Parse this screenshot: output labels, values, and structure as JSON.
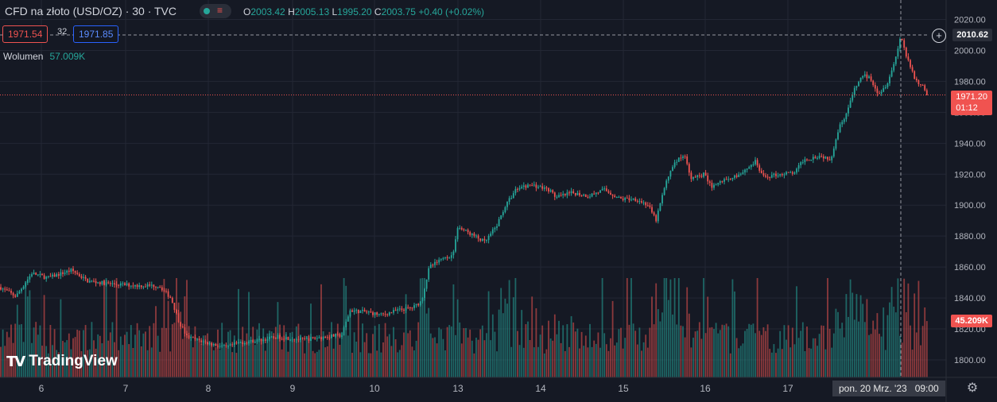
{
  "header": {
    "title": "CFD na złoto (USD/OZ) · 30 · TVC",
    "ohlc": [
      {
        "label": "O",
        "value": "2003.42"
      },
      {
        "label": "H",
        "value": "2005.13"
      },
      {
        "label": "L",
        "value": "1995.20"
      },
      {
        "label": "C",
        "value": "2003.75"
      },
      {
        "label": "",
        "value": "+0.40 (+0.02%)"
      }
    ]
  },
  "trade": {
    "bid": "1971.54",
    "spread": "32",
    "ask": "1971.85"
  },
  "volume_indicator": {
    "label": "Wolumen",
    "value": "57.009K"
  },
  "price_axis": {
    "labels": [
      "2020.00",
      "2000.00",
      "1980.00",
      "1960.00",
      "1940.00",
      "1920.00",
      "1900.00",
      "1880.00",
      "1860.00",
      "1840.00",
      "1820.00",
      "1800.00"
    ],
    "crosshair_price": "2010.62",
    "last_price": "1971.20",
    "countdown": "01:12",
    "volume_tag": "45.209K"
  },
  "time_axis": {
    "labels": [
      "6",
      "7",
      "8",
      "9",
      "10",
      "13",
      "14",
      "15",
      "16",
      "17"
    ],
    "crosshair_date": "pon. 20 Mrz. '23",
    "crosshair_time": "09:00"
  },
  "branding": {
    "logo_text": "TradingView",
    "logo_icon": "tradingview-logo"
  },
  "colors": {
    "up": "#26a69a",
    "down": "#ef5350",
    "background": "#151924",
    "grid": "#232734"
  },
  "chart_data": {
    "type": "candlestick",
    "symbol": "CFD na złoto (USD/OZ)",
    "interval": "30",
    "ylim": [
      1790,
      2028
    ],
    "close_path": [
      [
        0,
        1847
      ],
      [
        20,
        1841
      ],
      [
        40,
        1856
      ],
      [
        60,
        1853
      ],
      [
        90,
        1858
      ],
      [
        110,
        1851
      ],
      [
        140,
        1849
      ],
      [
        175,
        1848
      ],
      [
        200,
        1848
      ],
      [
        215,
        1840
      ],
      [
        225,
        1825
      ],
      [
        235,
        1815
      ],
      [
        260,
        1811
      ],
      [
        285,
        1808
      ],
      [
        300,
        1811
      ],
      [
        330,
        1813
      ],
      [
        350,
        1815
      ],
      [
        380,
        1813
      ],
      [
        410,
        1815
      ],
      [
        430,
        1816
      ],
      [
        440,
        1832
      ],
      [
        460,
        1831
      ],
      [
        480,
        1829
      ],
      [
        500,
        1832
      ],
      [
        520,
        1834
      ],
      [
        530,
        1838
      ],
      [
        540,
        1860
      ],
      [
        560,
        1866
      ],
      [
        570,
        1868
      ],
      [
        575,
        1886
      ],
      [
        590,
        1882
      ],
      [
        610,
        1876
      ],
      [
        625,
        1887
      ],
      [
        635,
        1899
      ],
      [
        650,
        1911
      ],
      [
        670,
        1913
      ],
      [
        690,
        1910
      ],
      [
        700,
        1905
      ],
      [
        720,
        1908
      ],
      [
        740,
        1906
      ],
      [
        760,
        1910
      ],
      [
        780,
        1904
      ],
      [
        800,
        1904
      ],
      [
        815,
        1900
      ],
      [
        825,
        1890
      ],
      [
        835,
        1910
      ],
      [
        845,
        1925
      ],
      [
        860,
        1933
      ],
      [
        870,
        1917
      ],
      [
        885,
        1920
      ],
      [
        895,
        1912
      ],
      [
        910,
        1916
      ],
      [
        930,
        1920
      ],
      [
        950,
        1928
      ],
      [
        960,
        1918
      ],
      [
        980,
        1920
      ],
      [
        1000,
        1921
      ],
      [
        1010,
        1929
      ],
      [
        1030,
        1932
      ],
      [
        1045,
        1930
      ],
      [
        1055,
        1950
      ],
      [
        1065,
        1960
      ],
      [
        1075,
        1975
      ],
      [
        1085,
        1984
      ],
      [
        1095,
        1982
      ],
      [
        1105,
        1972
      ],
      [
        1115,
        1978
      ],
      [
        1125,
        1992
      ],
      [
        1133,
        2010
      ],
      [
        1140,
        1996
      ],
      [
        1150,
        1982
      ],
      [
        1160,
        1977
      ],
      [
        1167,
        1971
      ]
    ]
  }
}
